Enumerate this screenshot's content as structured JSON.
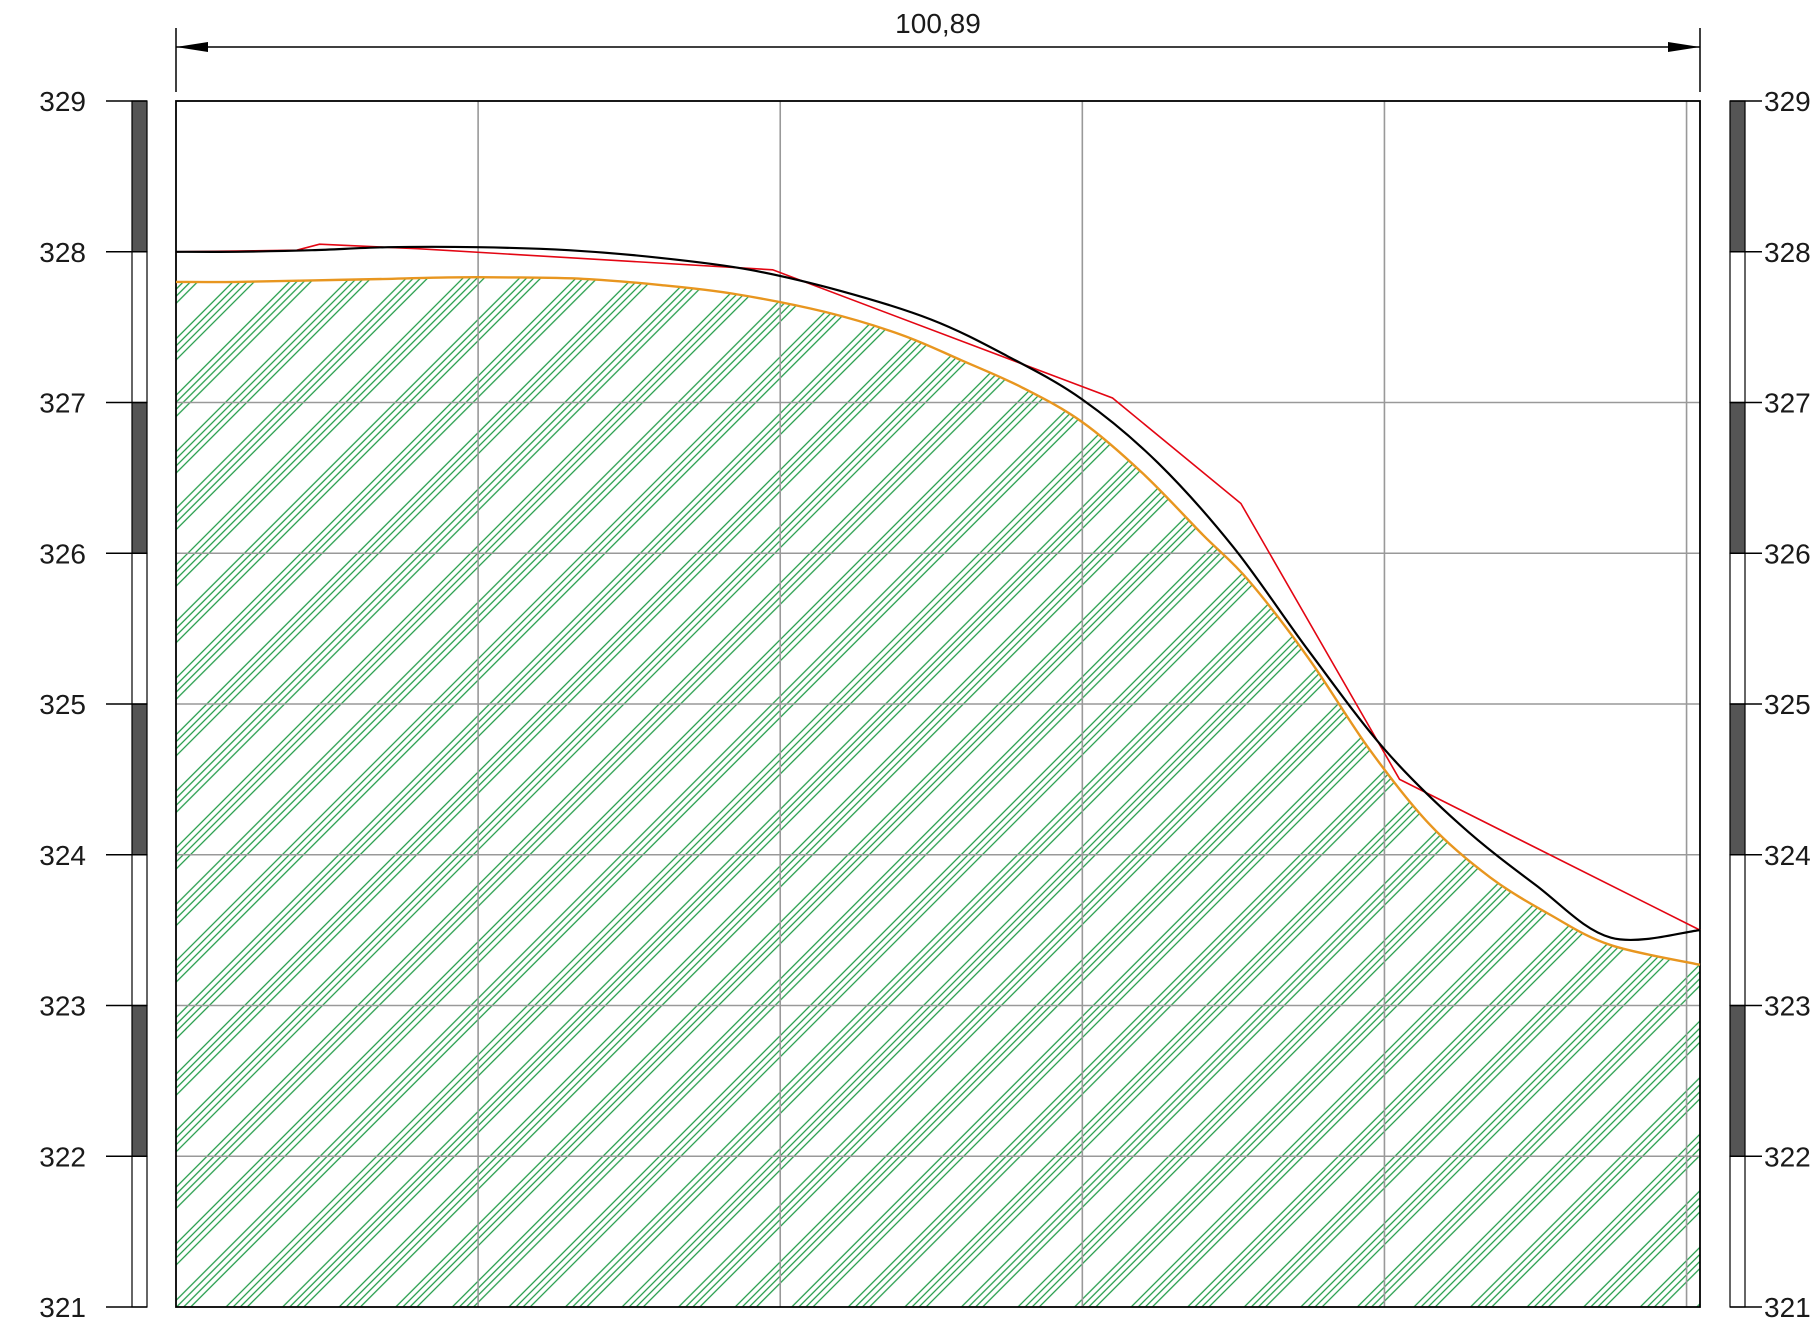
{
  "dimension": {
    "label": "100,89",
    "value": 100.89
  },
  "elevation_axis": {
    "min": 321,
    "max": 329,
    "labels": [
      "321",
      "322",
      "323",
      "324",
      "325",
      "326",
      "327",
      "328",
      "329"
    ]
  },
  "grid": {
    "vertical_stations": [
      0,
      20,
      40,
      60,
      80,
      100
    ],
    "horizontal_elevations": [
      322,
      323,
      324,
      325,
      326,
      327
    ],
    "color": "#999999"
  },
  "profiles": {
    "terrain_surveyed": {
      "color": "#e30613",
      "points": [
        [
          0,
          328.0
        ],
        [
          8,
          328.01
        ],
        [
          9.5,
          328.05
        ],
        [
          16,
          328.02
        ],
        [
          39.5,
          327.88
        ],
        [
          62,
          327.03
        ],
        [
          70.5,
          326.33
        ],
        [
          81,
          324.5
        ],
        [
          100.89,
          323.5
        ]
      ]
    },
    "terrain_smoothed": {
      "color": "#000000",
      "points": [
        [
          0,
          328.0
        ],
        [
          4,
          328.0
        ],
        [
          9,
          328.01
        ],
        [
          14,
          328.03
        ],
        [
          20,
          328.03
        ],
        [
          26,
          328.01
        ],
        [
          32,
          327.96
        ],
        [
          38,
          327.88
        ],
        [
          44,
          327.74
        ],
        [
          50,
          327.55
        ],
        [
          55,
          327.31
        ],
        [
          60,
          327.02
        ],
        [
          65,
          326.6
        ],
        [
          70,
          326.04
        ],
        [
          75,
          325.35
        ],
        [
          80,
          324.7
        ],
        [
          85,
          324.2
        ],
        [
          90,
          323.8
        ],
        [
          95,
          323.45
        ],
        [
          100.89,
          323.5
        ]
      ]
    },
    "fill_top": {
      "color": "#e8961f",
      "points": [
        [
          0,
          327.8
        ],
        [
          4,
          327.8
        ],
        [
          9,
          327.81
        ],
        [
          14,
          327.82
        ],
        [
          18,
          327.83
        ],
        [
          22,
          327.83
        ],
        [
          27,
          327.82
        ],
        [
          32,
          327.78
        ],
        [
          37,
          327.72
        ],
        [
          43,
          327.6
        ],
        [
          48,
          327.45
        ],
        [
          52,
          327.28
        ],
        [
          56,
          327.1
        ],
        [
          60,
          326.87
        ],
        [
          64,
          326.53
        ],
        [
          68,
          326.12
        ],
        [
          71,
          325.82
        ],
        [
          75,
          325.3
        ],
        [
          79,
          324.7
        ],
        [
          83,
          324.2
        ],
        [
          87,
          323.85
        ],
        [
          91,
          323.6
        ],
        [
          95,
          323.4
        ],
        [
          100.89,
          323.27
        ]
      ]
    }
  },
  "fill": {
    "hatch_color": "#1f9a46"
  },
  "scale_bar": {
    "dark_color": "#555555"
  }
}
